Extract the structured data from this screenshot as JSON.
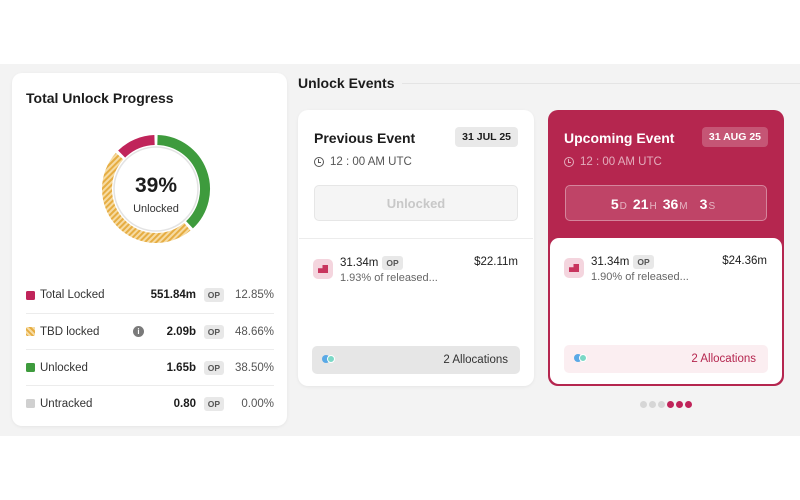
{
  "progress": {
    "title": "Total Unlock Progress",
    "percent_text": "39%",
    "percent_sublabel": "Unlocked",
    "donut_segments": [
      {
        "name": "Total Locked",
        "value": 12.85,
        "color": "#c0245a"
      },
      {
        "name": "Unlocked",
        "value": 38.5,
        "color": "#3e9b3d"
      },
      {
        "name": "TBD locked",
        "value": 48.66,
        "color": "#e8b54d"
      }
    ],
    "legend": [
      {
        "label": "Total Locked",
        "amount": "551.84m",
        "token": "OP",
        "pct": "12.85%",
        "color": "#c0245a",
        "swatch": "solid",
        "info": false
      },
      {
        "label": "TBD locked",
        "amount": "2.09b",
        "token": "OP",
        "pct": "48.66%",
        "color": "#e8b54d",
        "swatch": "striped",
        "info": true,
        "info_glyph": "i"
      },
      {
        "label": "Unlocked",
        "amount": "1.65b",
        "token": "OP",
        "pct": "38.50%",
        "color": "#3e9b3d",
        "swatch": "solid",
        "info": false
      },
      {
        "label": "Untracked",
        "amount": "0.80",
        "token": "OP",
        "pct": "0.00%",
        "color": "#d0d0d0",
        "swatch": "solid",
        "info": false
      }
    ]
  },
  "events": {
    "title": "Unlock Events",
    "previous": {
      "title": "Previous Event",
      "date": "31 JUL 25",
      "time": "12 : 00 AM UTC",
      "status_label": "Unlocked",
      "amount": "31.34m",
      "token": "OP",
      "released": "1.93% of released...",
      "usd": "$22.11m",
      "allocations": "2 Allocations"
    },
    "upcoming": {
      "title": "Upcoming Event",
      "date": "31 AUG 25",
      "time": "12 : 00 AM UTC",
      "countdown": [
        {
          "value": "5",
          "unit": "D"
        },
        {
          "value": "21",
          "unit": "H"
        },
        {
          "value": "36",
          "unit": "M"
        },
        {
          "value": "3",
          "unit": "S"
        }
      ],
      "amount": "31.34m",
      "token": "OP",
      "released": "1.90% of released...",
      "usd": "$24.36m",
      "allocations": "2 Allocations"
    },
    "pager": {
      "count": 6,
      "active": [
        3,
        4,
        5
      ],
      "active_color": "#c0245a",
      "inactive_color": "#d6d6d6"
    }
  },
  "icons": {
    "clock": "clock-icon",
    "info": "info-icon",
    "token": "token-icon",
    "allocation": "allocation-dots-icon"
  }
}
